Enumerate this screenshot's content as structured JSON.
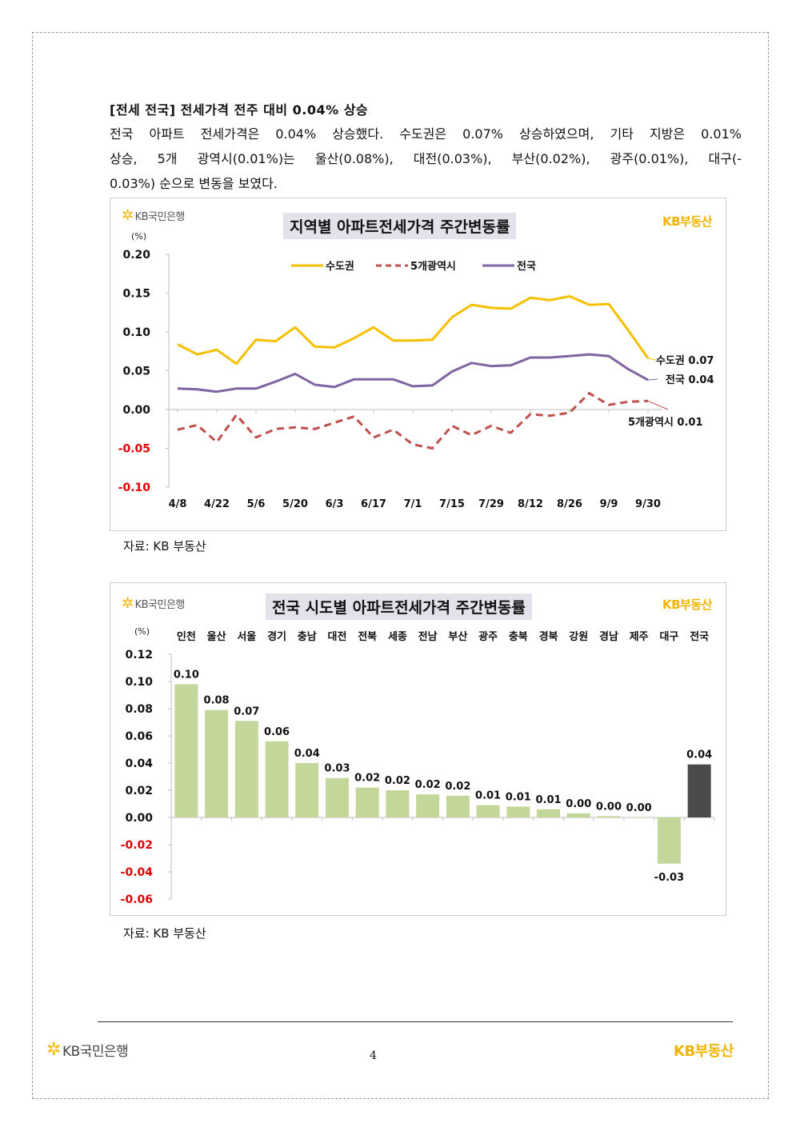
{
  "heading": "[전세 전국] 전세가격 전주 대비 0.04% 상승",
  "paragraph_lines": [
    "전국 아파트 전세가격은 0.04% 상승했다. 수도권은 0.07% 상승하였으며, 기타 지방은 0.01%",
    "상승, 5개 광역시(0.01%)는 울산(0.08%), 대전(0.03%), 부산(0.02%), 광주(0.01%), 대구(-",
    "0.03%) 순으로 변동을 보였다."
  ],
  "brand": {
    "bank": "KB국민은행",
    "land": "KB부동산",
    "accent": "#f0b400"
  },
  "source_label": "자료: KB 부동산",
  "page_number": "4",
  "chart_data": [
    {
      "type": "line",
      "title": "지역별 아파트전세가격 주간변동률",
      "unit_label": "(%)",
      "ylim": [
        -0.1,
        0.2
      ],
      "yticks": [
        "0.20",
        "0.15",
        "0.10",
        "0.05",
        "0.00",
        "-0.05",
        "-0.10"
      ],
      "x_tick_labels": [
        "4/8",
        "4/22",
        "5/6",
        "5/20",
        "6/3",
        "6/17",
        "7/1",
        "7/15",
        "7/29",
        "8/12",
        "8/26",
        "9/9",
        "9/30"
      ],
      "legend_position": "top-center",
      "series": [
        {
          "name": "수도권",
          "color": "#f5c000",
          "dash": "solid",
          "values": [
            0.084,
            0.071,
            0.077,
            0.059,
            0.09,
            0.088,
            0.106,
            0.081,
            0.08,
            0.092,
            0.106,
            0.089,
            0.089,
            0.09,
            0.119,
            0.135,
            0.131,
            0.13,
            0.144,
            0.141,
            0.146,
            0.135,
            0.136,
            0.102,
            0.066
          ],
          "end_label": "수도권 0.07"
        },
        {
          "name": "5개광역시",
          "color": "#c0504d",
          "dash": "dashed",
          "values": [
            -0.026,
            -0.02,
            -0.042,
            -0.007,
            -0.036,
            -0.025,
            -0.023,
            -0.025,
            -0.017,
            -0.009,
            -0.036,
            -0.026,
            -0.045,
            -0.05,
            -0.021,
            -0.033,
            -0.021,
            -0.03,
            -0.006,
            -0.008,
            -0.004,
            0.021,
            0.006,
            0.01,
            0.011
          ],
          "end_label": "5개광역시 0.01"
        },
        {
          "name": "전국",
          "color": "#8064a2",
          "dash": "solid",
          "values": [
            0.027,
            0.026,
            0.023,
            0.027,
            0.027,
            0.036,
            0.046,
            0.032,
            0.029,
            0.039,
            0.039,
            0.039,
            0.03,
            0.031,
            0.049,
            0.06,
            0.056,
            0.057,
            0.067,
            0.067,
            0.069,
            0.071,
            0.069,
            0.052,
            0.038
          ],
          "end_label": "전국 0.04"
        }
      ]
    },
    {
      "type": "bar",
      "title": "전국 시도별 아파트전세가격 주간변동률",
      "unit_label": "(%)",
      "ylim": [
        -0.06,
        0.12
      ],
      "yticks": [
        "0.12",
        "0.10",
        "0.08",
        "0.06",
        "0.04",
        "0.02",
        "0.00",
        "-0.02",
        "-0.04",
        "-0.06"
      ],
      "categories": [
        "인천",
        "울산",
        "서울",
        "경기",
        "충남",
        "대전",
        "전북",
        "세종",
        "전남",
        "부산",
        "광주",
        "충북",
        "경북",
        "강원",
        "경남",
        "제주",
        "대구",
        "전국"
      ],
      "values": [
        0.098,
        0.079,
        0.071,
        0.056,
        0.04,
        0.029,
        0.022,
        0.02,
        0.017,
        0.016,
        0.009,
        0.008,
        0.006,
        0.003,
        0.001,
        0.0,
        -0.034,
        0.039
      ],
      "value_labels": [
        "0.10",
        "0.08",
        "0.07",
        "0.06",
        "0.04",
        "0.03",
        "0.02",
        "0.02",
        "0.02",
        "0.02",
        "0.01",
        "0.01",
        "0.01",
        "0.00",
        "0.00",
        "0.00",
        "-0.03",
        "0.04"
      ],
      "bar_color": "#c4d79b",
      "highlight_color": "#4a4a4a",
      "highlight_category": "전국"
    }
  ]
}
